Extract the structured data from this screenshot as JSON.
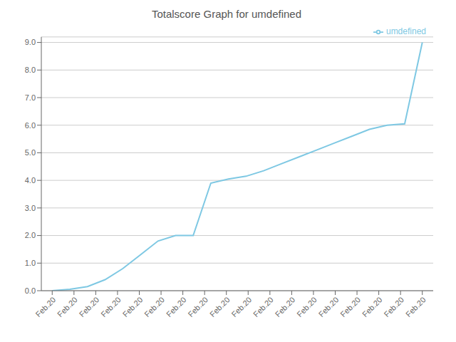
{
  "chart_data": {
    "type": "line",
    "title": "Totalscore Graph for umdefined",
    "x": [
      0,
      0.8095238095238095,
      1.619047619047619,
      2.4285714285714284,
      3.238095238095238,
      4.0476190476190474,
      4.857142857142857,
      5.666666666666667,
      6.476190476190476,
      7.285714285714286,
      8.095238095238095,
      8.904761904761905,
      9.714285714285714,
      10.523809523809524,
      11.333333333333334,
      12.142857142857142,
      12.952380952380953,
      13.761904761904763,
      14.571428571428571,
      15.380952380952381,
      16.19047619047619,
      17
    ],
    "series": [
      {
        "name": "umdefined",
        "color": "#7ec8e3",
        "values": [
          0.0,
          0.05,
          0.15,
          0.4,
          0.8,
          1.3,
          1.8,
          2.0,
          2.0,
          3.9,
          4.05,
          4.15,
          4.35,
          4.6,
          4.85,
          5.1,
          5.35,
          5.6,
          5.85,
          6.0,
          6.05,
          9.0
        ]
      }
    ],
    "xlim": [
      -0.5,
      17.5
    ],
    "xticks": [
      {
        "value": 0,
        "label": "Feb.20"
      },
      {
        "value": 1,
        "label": "Feb.20"
      },
      {
        "value": 2,
        "label": "Feb.20"
      },
      {
        "value": 3,
        "label": "Feb.20"
      },
      {
        "value": 4,
        "label": "Feb.20"
      },
      {
        "value": 5,
        "label": "Feb.20"
      },
      {
        "value": 6,
        "label": "Feb.20"
      },
      {
        "value": 7,
        "label": "Feb.20"
      },
      {
        "value": 8,
        "label": "Feb.20"
      },
      {
        "value": 9,
        "label": "Feb.20"
      },
      {
        "value": 10,
        "label": "Feb.20"
      },
      {
        "value": 11,
        "label": "Feb.20"
      },
      {
        "value": 12,
        "label": "Feb.20"
      },
      {
        "value": 13,
        "label": "Feb.20"
      },
      {
        "value": 14,
        "label": "Feb.20"
      },
      {
        "value": 15,
        "label": "Feb.20"
      },
      {
        "value": 16,
        "label": "Feb.20"
      },
      {
        "value": 17,
        "label": "Feb.20"
      }
    ],
    "ylim": [
      0.0,
      9.2
    ],
    "yticks": [
      {
        "value": 0,
        "label": "0.0"
      },
      {
        "value": 1,
        "label": "1.0"
      },
      {
        "value": 2,
        "label": "2.0"
      },
      {
        "value": 3,
        "label": "3.0"
      },
      {
        "value": 4,
        "label": "4.0"
      },
      {
        "value": 5,
        "label": "5.0"
      },
      {
        "value": 6,
        "label": "6.0"
      },
      {
        "value": 7,
        "label": "7.0"
      },
      {
        "value": 8,
        "label": "8.0"
      },
      {
        "value": 9,
        "label": "9.0"
      }
    ],
    "grid": true,
    "legend": "upper right"
  }
}
